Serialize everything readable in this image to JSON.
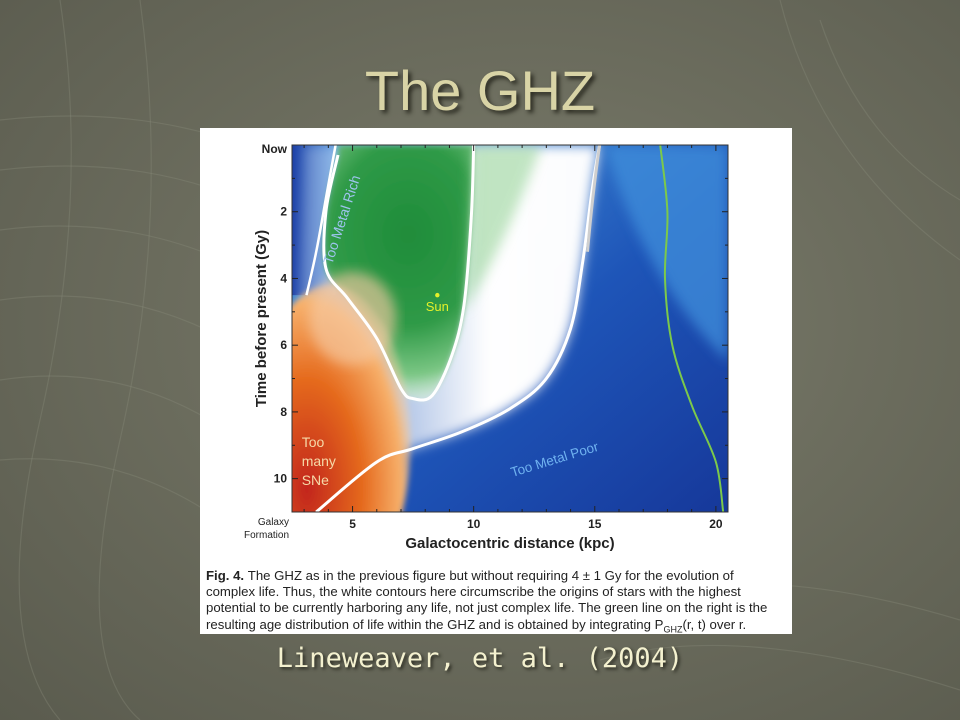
{
  "slide": {
    "title": "The GHZ",
    "citation": "Lineweaver, et al. (2004)"
  },
  "figure": {
    "caption_label": "Fig. 4.",
    "caption_text": "The GHZ as in the previous figure but without requiring 4 ± 1 Gy for the evolution of complex life. Thus, the white contours here circumscribe the origins of stars with the highest potential to be currently harboring any life, not just complex life. The green line on the right is the resulting age distribution of life within the GHZ and is obtained by integrating P",
    "caption_sub": "GHZ",
    "caption_tail": "(r, t) over r.",
    "region_labels": {
      "too_metal_rich": "Too Metal Rich",
      "too_metal_poor": "Too Metal Poor",
      "too_many_sne": [
        "Too",
        "many",
        "SNe"
      ],
      "sun": "Sun"
    }
  },
  "chart_data": {
    "type": "heatmap",
    "xlabel": "Galactocentric distance (kpc)",
    "ylabel": "Time before present (Gy)",
    "xlim": [
      2.5,
      20.5
    ],
    "ylim": [
      0,
      11
    ],
    "x_ticks": [
      {
        "value": 5,
        "label": "5"
      },
      {
        "value": 10,
        "label": "10"
      },
      {
        "value": 15,
        "label": "15"
      },
      {
        "value": 20,
        "label": "20"
      }
    ],
    "y_ticks": [
      {
        "value": 0,
        "label": "Now"
      },
      {
        "value": 2,
        "label": "2"
      },
      {
        "value": 4,
        "label": "4"
      },
      {
        "value": 6,
        "label": "6"
      },
      {
        "value": 8,
        "label": "8"
      },
      {
        "value": 10,
        "label": "10"
      },
      {
        "value": 11,
        "label": "Galaxy Formation"
      }
    ],
    "sun_point": {
      "r": 8.5,
      "t": 4.5
    },
    "ghz_outer_contour": [
      [
        3.5,
        11
      ],
      [
        6.0,
        9.5
      ],
      [
        7.5,
        9.1
      ],
      [
        9.5,
        8.6
      ],
      [
        11.5,
        7.9
      ],
      [
        13,
        7.0
      ],
      [
        14,
        5.5
      ],
      [
        14.5,
        3.5
      ],
      [
        14.9,
        1.3
      ],
      [
        15.2,
        0
      ]
    ],
    "ghz_inner_contour": [
      [
        4.4,
        0.3
      ],
      [
        3.9,
        2.0
      ],
      [
        3.9,
        3.7
      ],
      [
        4.8,
        4.6
      ],
      [
        6.0,
        5.8
      ],
      [
        7.0,
        7.3
      ],
      [
        7.5,
        7.6
      ],
      [
        8.3,
        7.5
      ],
      [
        9.1,
        6.3
      ],
      [
        9.6,
        4.8
      ],
      [
        9.9,
        2.2
      ],
      [
        10.0,
        0
      ]
    ],
    "metal_rich_boundary": [
      [
        4.3,
        0
      ],
      [
        3.9,
        1.6
      ],
      [
        3.5,
        3.2
      ],
      [
        3.1,
        4.5
      ]
    ],
    "age_distribution_line": [
      [
        17.7,
        0
      ],
      [
        18.0,
        2.0
      ],
      [
        17.9,
        4.0
      ],
      [
        18.2,
        6.0
      ],
      [
        19.0,
        7.8
      ],
      [
        20.0,
        9.5
      ],
      [
        20.3,
        11
      ]
    ]
  }
}
